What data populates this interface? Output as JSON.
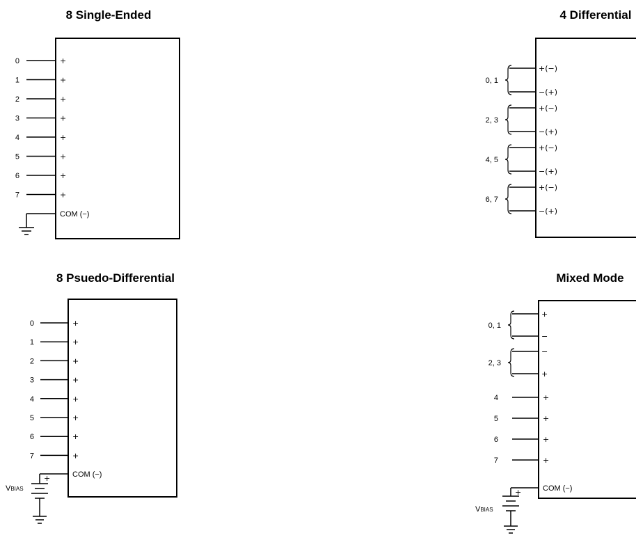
{
  "panels": {
    "single_ended": {
      "title": "8 Single-Ended",
      "inputs": [
        {
          "label": "0",
          "sign": "+"
        },
        {
          "label": "1",
          "sign": "+"
        },
        {
          "label": "2",
          "sign": "+"
        },
        {
          "label": "3",
          "sign": "+"
        },
        {
          "label": "4",
          "sign": "+"
        },
        {
          "label": "5",
          "sign": "+"
        },
        {
          "label": "6",
          "sign": "+"
        },
        {
          "label": "7",
          "sign": "+"
        }
      ],
      "com_label": "COM (−)"
    },
    "differential": {
      "title": "4 Differential",
      "pairs": [
        {
          "label": "0, 1",
          "top_sign": "+(−)",
          "bottom_sign": "−(+)"
        },
        {
          "label": "2, 3",
          "top_sign": "+(−)",
          "bottom_sign": "−(+)"
        },
        {
          "label": "4, 5",
          "top_sign": "+(−)",
          "bottom_sign": "−(+)"
        },
        {
          "label": "6, 7",
          "top_sign": "+(−)",
          "bottom_sign": "−(+)"
        }
      ]
    },
    "pseudo_differential": {
      "title": "8 Psuedo-Differential",
      "inputs": [
        {
          "label": "0",
          "sign": "+"
        },
        {
          "label": "1",
          "sign": "+"
        },
        {
          "label": "2",
          "sign": "+"
        },
        {
          "label": "3",
          "sign": "+"
        },
        {
          "label": "4",
          "sign": "+"
        },
        {
          "label": "5",
          "sign": "+"
        },
        {
          "label": "6",
          "sign": "+"
        },
        {
          "label": "7",
          "sign": "+"
        }
      ],
      "com_label": "COM (−)",
      "bias_label": "V",
      "bias_sub": "BIAS",
      "bias_plus": "+"
    },
    "mixed_mode": {
      "title": "Mixed Mode",
      "pairs": [
        {
          "label": "0, 1",
          "top_sign": "+",
          "bottom_sign": "−"
        },
        {
          "label": "2, 3",
          "top_sign": "−",
          "bottom_sign": "+"
        }
      ],
      "inputs": [
        {
          "label": "4",
          "sign": "+"
        },
        {
          "label": "5",
          "sign": "+"
        },
        {
          "label": "6",
          "sign": "+"
        },
        {
          "label": "7",
          "sign": "+"
        }
      ],
      "com_label": "COM (−)",
      "bias_label": "V",
      "bias_sub": "BIAS",
      "bias_plus": "+"
    }
  }
}
